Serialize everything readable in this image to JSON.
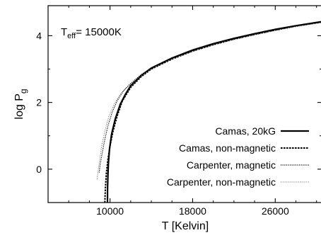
{
  "chart_data": {
    "type": "line",
    "annotation": {
      "prefix": "T",
      "subscript": "eff",
      "suffix": "= 15000K"
    },
    "xlabel": "T [Kelvin]",
    "ylabel": {
      "prefix": "log P",
      "subscript": "g"
    },
    "xlim": [
      4000,
      30500
    ],
    "ylim": [
      -1,
      4.9
    ],
    "xticks": [
      10000,
      18000,
      26000
    ],
    "xtick_labels": [
      "10000",
      "18000",
      "26000"
    ],
    "yticks": [
      0,
      2,
      4
    ],
    "ytick_labels": [
      "0",
      "2",
      "4"
    ],
    "grid": false,
    "legend_placement": "bottom-right",
    "series": [
      {
        "name": "Camas, 20kG",
        "style": "solid",
        "x": [
          9750,
          9760,
          9800,
          9850,
          9950,
          10150,
          10500,
          11000,
          11500,
          12000,
          13000,
          14000,
          16000,
          18000,
          20000,
          22000,
          24000,
          26000,
          28000,
          30500
        ],
        "y": [
          -1.0,
          -0.6,
          -0.15,
          0.2,
          0.6,
          1.05,
          1.5,
          1.95,
          2.25,
          2.5,
          2.8,
          3.03,
          3.33,
          3.57,
          3.76,
          3.92,
          4.06,
          4.19,
          4.3,
          4.42
        ]
      },
      {
        "name": "Camas, non-magnetic",
        "style": "dashed",
        "x": [
          9500,
          9550,
          9650,
          9800,
          10000,
          10300,
          10700,
          11200,
          12000,
          13000,
          14000,
          16000,
          18000,
          20000,
          22000,
          24000,
          26000,
          28000,
          30500
        ],
        "y": [
          -1.0,
          -0.55,
          -0.1,
          0.3,
          0.7,
          1.15,
          1.6,
          2.05,
          2.45,
          2.77,
          3.0,
          3.3,
          3.54,
          3.73,
          3.9,
          4.04,
          4.17,
          4.29,
          4.41
        ]
      },
      {
        "name": "Carpenter, magnetic",
        "style": "dotted",
        "x": [
          8950,
          9050,
          9250,
          9500,
          9800,
          10200,
          10700,
          11300,
          12000,
          13000,
          14000,
          16000,
          18000,
          20000,
          22000,
          24000,
          26000,
          28000,
          30500
        ],
        "y": [
          -0.1,
          0.15,
          0.5,
          0.9,
          1.3,
          1.7,
          2.05,
          2.35,
          2.57,
          2.83,
          3.03,
          3.32,
          3.55,
          3.74,
          3.9,
          4.04,
          4.17,
          4.29,
          4.41
        ]
      },
      {
        "name": "Carpenter, non-magnetic",
        "style": "dotted-thin",
        "x": [
          8750,
          8850,
          9000,
          9200,
          9500,
          9900,
          10400,
          11000,
          11800,
          13000,
          14000,
          16000,
          18000,
          20000,
          22000,
          24000,
          26000,
          28000,
          30500
        ],
        "y": [
          -0.3,
          -0.05,
          0.3,
          0.7,
          1.15,
          1.6,
          1.95,
          2.25,
          2.5,
          2.8,
          3.0,
          3.3,
          3.53,
          3.72,
          3.88,
          4.02,
          4.15,
          4.27,
          4.39
        ]
      }
    ]
  }
}
